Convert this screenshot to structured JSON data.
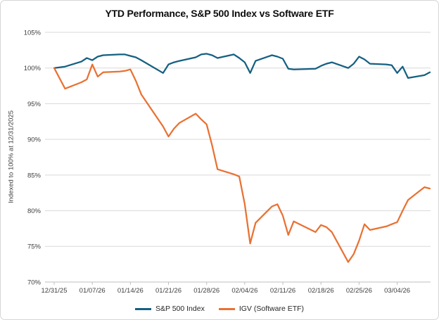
{
  "chart_data": {
    "type": "line",
    "title": "YTD Performance, S&P 500 Index vs Software ETF",
    "ylabel": "Indexed to 100% at 12/31/2025",
    "xlabel": "",
    "ylim": [
      70,
      105
    ],
    "y_ticks": [
      70,
      75,
      80,
      85,
      90,
      95,
      100,
      105
    ],
    "y_tick_suffix": "%",
    "grid": "horizontal",
    "legend_position": "bottom",
    "x_tick_labels": [
      "12/31/25",
      "01/07/26",
      "01/14/26",
      "01/21/26",
      "01/28/26",
      "02/04/26",
      "02/11/26",
      "02/18/26",
      "02/25/26",
      "03/04/26"
    ],
    "x_tick_interval_days": 7,
    "x": [
      "12/31/25",
      "01/02/26",
      "01/05/26",
      "01/06/26",
      "01/07/26",
      "01/08/26",
      "01/09/26",
      "01/12/26",
      "01/13/26",
      "01/14/26",
      "01/15/26",
      "01/16/26",
      "01/20/26",
      "01/21/26",
      "01/22/26",
      "01/23/26",
      "01/26/26",
      "01/27/26",
      "01/28/26",
      "01/29/26",
      "01/30/26",
      "02/02/26",
      "02/03/26",
      "02/04/26",
      "02/05/26",
      "02/06/26",
      "02/09/26",
      "02/10/26",
      "02/11/26",
      "02/12/26",
      "02/13/26",
      "02/17/26",
      "02/18/26",
      "02/19/26",
      "02/20/26",
      "02/23/26",
      "02/24/26",
      "02/25/26",
      "02/26/26",
      "02/27/26",
      "03/02/26",
      "03/03/26",
      "03/04/26",
      "03/05/26",
      "03/06/26",
      "03/09/26",
      "03/10/26"
    ],
    "series": [
      {
        "name": "S&P 500 Index",
        "color": "#156082",
        "values": [
          100.0,
          100.2,
          100.9,
          101.4,
          101.1,
          101.6,
          101.8,
          101.9,
          101.9,
          101.7,
          101.5,
          101.1,
          99.3,
          100.5,
          100.8,
          101.0,
          101.5,
          101.9,
          102.0,
          101.8,
          101.4,
          101.9,
          101.4,
          100.8,
          99.3,
          101.0,
          101.8,
          101.6,
          101.3,
          99.9,
          99.8,
          99.9,
          100.3,
          100.6,
          100.8,
          100.0,
          100.6,
          101.6,
          101.2,
          100.6,
          100.5,
          100.4,
          99.3,
          100.2,
          98.6,
          99.0,
          99.4
        ]
      },
      {
        "name": "IGV (Software ETF)",
        "color": "#E97132",
        "values": [
          100.0,
          97.1,
          98.0,
          98.4,
          100.5,
          98.8,
          99.4,
          99.5,
          99.6,
          99.8,
          98.2,
          96.3,
          91.8,
          90.4,
          91.5,
          92.3,
          93.6,
          92.8,
          92.1,
          89.2,
          85.8,
          85.1,
          84.8,
          80.9,
          75.4,
          78.3,
          80.6,
          80.9,
          79.3,
          76.6,
          78.5,
          77.0,
          78.0,
          77.7,
          77.0,
          72.8,
          73.9,
          75.8,
          78.1,
          77.3,
          77.8,
          78.1,
          78.4,
          80.0,
          81.5,
          83.3,
          83.1
        ]
      }
    ],
    "colors": {
      "gridline": "#D9D9D9",
      "axis_line": "#BFBFBF",
      "tick_label": "#404040",
      "title": "#0D0D0D"
    }
  }
}
